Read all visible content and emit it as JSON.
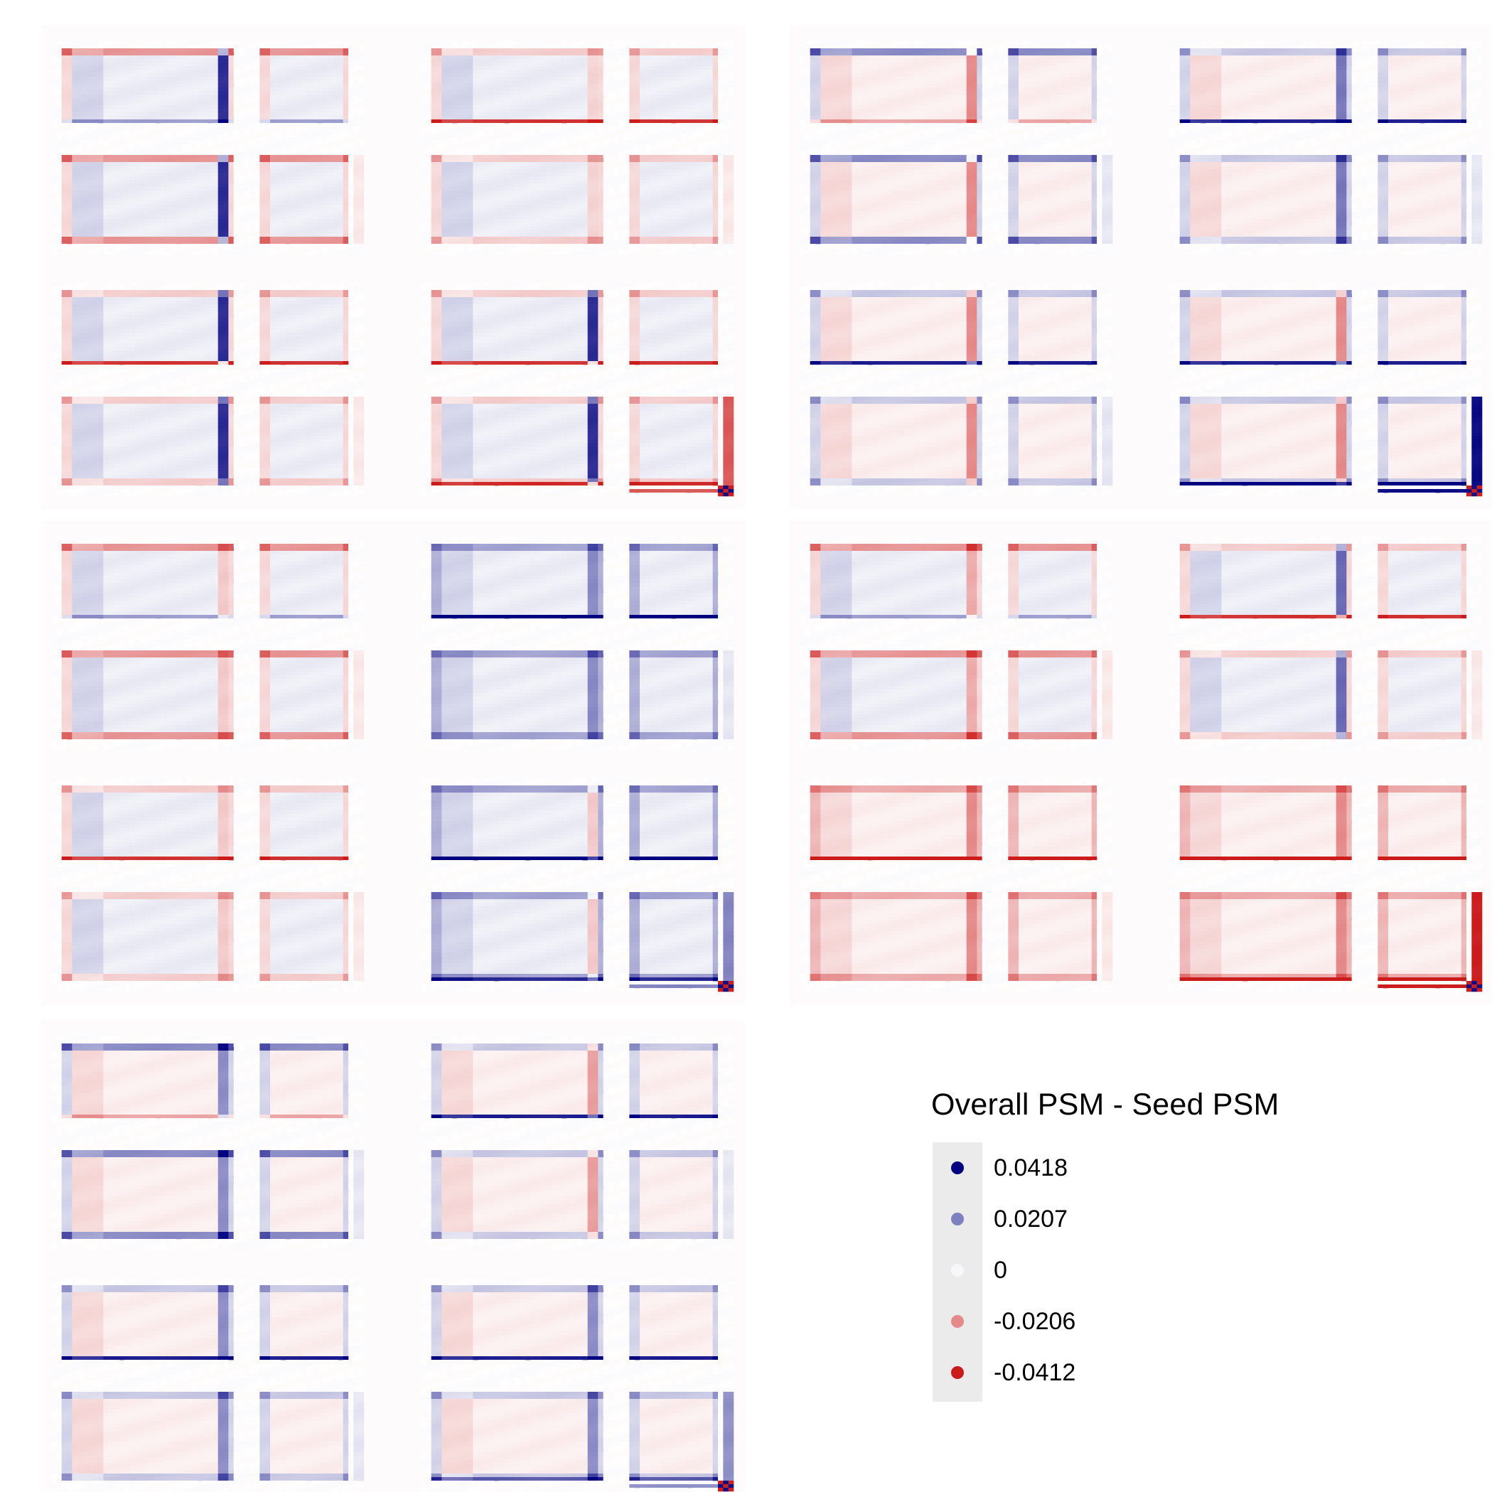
{
  "chart_data": {
    "type": "heatmap",
    "description_values": "difference matrices (Overall PSM - Seed PSM), one per panel",
    "legend": {
      "title": "Overall PSM - Seed PSM",
      "entries": [
        {
          "label": "0.0418",
          "value": 0.0418,
          "color": "#000080"
        },
        {
          "label": "0.0207",
          "value": 0.0207,
          "color": "#7f80c0"
        },
        {
          "label": "0",
          "value": 0,
          "color": "#f8f6f9"
        },
        {
          "label": "-0.0206",
          "value": -0.0206,
          "color": "#e58a8a"
        },
        {
          "label": "-0.0412",
          "value": -0.0412,
          "color": "#cc1b1b"
        }
      ]
    },
    "color_scale": {
      "low": "#cc1b1b",
      "mid": "#ffffff",
      "high": "#000080",
      "limits": [
        -0.0412,
        0.0418
      ]
    },
    "panels": [
      {
        "edge": "red",
        "inner": "blue",
        "rightCol": 0.035,
        "rightColB": -0.012,
        "strongBlue": 0.03
      },
      {
        "edge": "blue",
        "inner": "red",
        "rightCol": -0.02,
        "rightColB": 0.028,
        "strongBlue": 0.04
      },
      {
        "edge": "mix",
        "inner": "blue",
        "rightCol": -0.014,
        "rightColB": 0.018,
        "strongBlue": 0.02
      },
      {
        "edge": "red",
        "inner": "mix",
        "rightCol": -0.02,
        "rightColB": 0.024,
        "strongBlue": 0.041
      },
      {
        "edge": "blue",
        "inner": "red",
        "rightCol": 0.024,
        "rightColB": -0.016,
        "strongBlue": 0.018
      }
    ]
  }
}
